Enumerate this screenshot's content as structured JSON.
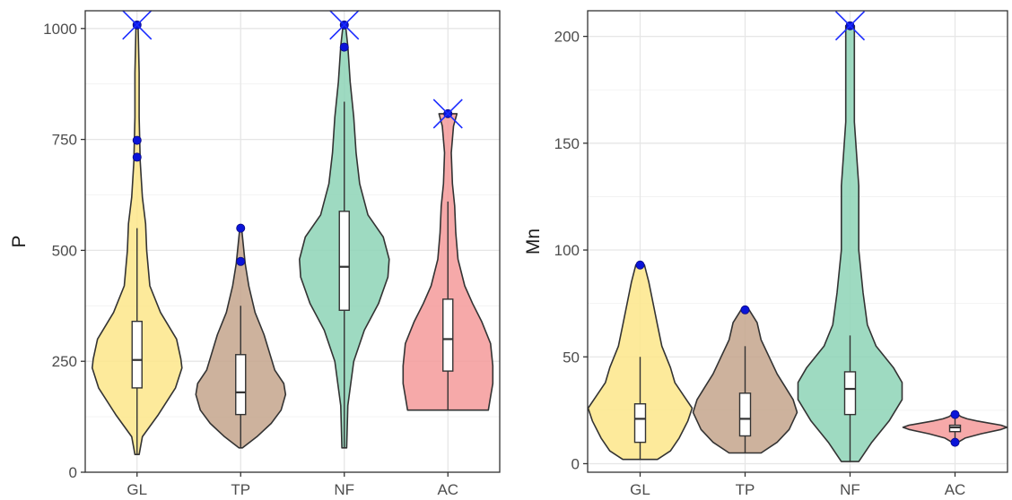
{
  "chart_data": [
    {
      "type": "violin",
      "xlabel": "",
      "ylabel": "P",
      "categories": [
        "GL",
        "TP",
        "NF",
        "AC"
      ],
      "colors": [
        "#fde68a",
        "#c4a48c",
        "#8dd3b6",
        "#f59a9a"
      ],
      "ylim": [
        0,
        1040
      ],
      "yticks": [
        0,
        250,
        500,
        750,
        1000
      ],
      "grid": true,
      "series": [
        {
          "category": "GL",
          "min": 40,
          "q1": 190,
          "median": 253,
          "q3": 340,
          "max": 550,
          "outliers": [
            710,
            748,
            1008
          ],
          "extreme": 1008,
          "density": [
            [
              40,
              2
            ],
            [
              80,
              5
            ],
            [
              130,
              20
            ],
            [
              190,
              36
            ],
            [
              235,
              42
            ],
            [
              255,
              41
            ],
            [
              300,
              37
            ],
            [
              360,
              22
            ],
            [
              420,
              12
            ],
            [
              500,
              9
            ],
            [
              560,
              8
            ],
            [
              620,
              5
            ],
            [
              700,
              3
            ],
            [
              800,
              2
            ],
            [
              900,
              2
            ],
            [
              1008,
              1
            ]
          ]
        },
        {
          "category": "TP",
          "min": 55,
          "q1": 130,
          "median": 180,
          "q3": 265,
          "max": 375,
          "outliers": [
            475,
            550
          ],
          "density": [
            [
              55,
              2
            ],
            [
              80,
              18
            ],
            [
              110,
              34
            ],
            [
              140,
              45
            ],
            [
              175,
              50
            ],
            [
              200,
              48
            ],
            [
              230,
              38
            ],
            [
              270,
              32
            ],
            [
              310,
              26
            ],
            [
              360,
              16
            ],
            [
              420,
              9
            ],
            [
              470,
              5
            ],
            [
              510,
              3
            ],
            [
              550,
              1
            ]
          ]
        },
        {
          "category": "NF",
          "min": 55,
          "q1": 365,
          "median": 463,
          "q3": 588,
          "max": 835,
          "outliers": [
            958,
            1008
          ],
          "extreme": 1008,
          "density": [
            [
              55,
              2
            ],
            [
              150,
              3
            ],
            [
              250,
              8
            ],
            [
              320,
              17
            ],
            [
              380,
              29
            ],
            [
              440,
              37
            ],
            [
              480,
              38
            ],
            [
              530,
              33
            ],
            [
              580,
              20
            ],
            [
              650,
              13
            ],
            [
              720,
              10
            ],
            [
              800,
              8
            ],
            [
              880,
              5
            ],
            [
              960,
              3
            ],
            [
              1008,
              1
            ]
          ]
        },
        {
          "category": "AC",
          "min": 140,
          "q1": 228,
          "median": 300,
          "q3": 390,
          "max": 610,
          "outliers": [
            808
          ],
          "extreme": 808,
          "density": [
            [
              140,
              36
            ],
            [
              170,
              38
            ],
            [
              200,
              40
            ],
            [
              240,
              40
            ],
            [
              290,
              38
            ],
            [
              340,
              30
            ],
            [
              380,
              22
            ],
            [
              420,
              15
            ],
            [
              480,
              9
            ],
            [
              540,
              7
            ],
            [
              600,
              6
            ],
            [
              650,
              4
            ],
            [
              720,
              3
            ],
            [
              780,
              5
            ],
            [
              808,
              8
            ]
          ]
        }
      ]
    },
    {
      "type": "violin",
      "xlabel": "",
      "ylabel": "Mn",
      "categories": [
        "GL",
        "TP",
        "NF",
        "AC"
      ],
      "colors": [
        "#fde68a",
        "#c4a48c",
        "#8dd3b6",
        "#f59a9a"
      ],
      "ylim": [
        -4,
        212
      ],
      "yticks": [
        0,
        50,
        100,
        150,
        200
      ],
      "grid": true,
      "series": [
        {
          "category": "GL",
          "min": 2,
          "q1": 10,
          "median": 21,
          "q3": 28,
          "max": 50,
          "outliers": [
            93
          ],
          "density": [
            [
              2,
              4
            ],
            [
              6,
              7
            ],
            [
              12,
              9
            ],
            [
              20,
              11
            ],
            [
              26,
              12
            ],
            [
              32,
              10
            ],
            [
              38,
              8
            ],
            [
              45,
              7
            ],
            [
              55,
              5
            ],
            [
              65,
              4
            ],
            [
              75,
              3
            ],
            [
              85,
              2
            ],
            [
              93,
              1
            ]
          ]
        },
        {
          "category": "TP",
          "min": 5,
          "q1": 13,
          "median": 21,
          "q3": 33,
          "max": 55,
          "outliers": [
            72
          ],
          "density": [
            [
              5,
              4
            ],
            [
              10,
              8
            ],
            [
              16,
              11
            ],
            [
              24,
              13
            ],
            [
              30,
              12
            ],
            [
              36,
              10
            ],
            [
              42,
              8
            ],
            [
              50,
              6
            ],
            [
              58,
              4
            ],
            [
              66,
              3
            ],
            [
              72,
              1
            ]
          ]
        },
        {
          "category": "NF",
          "min": 1,
          "q1": 23,
          "median": 35,
          "q3": 43,
          "max": 60,
          "outliers": [
            205
          ],
          "extreme": 205,
          "density": [
            [
              1,
              2
            ],
            [
              10,
              5
            ],
            [
              20,
              9
            ],
            [
              30,
              12
            ],
            [
              38,
              12
            ],
            [
              45,
              10
            ],
            [
              55,
              6
            ],
            [
              65,
              4
            ],
            [
              80,
              3
            ],
            [
              100,
              2
            ],
            [
              130,
              2
            ],
            [
              160,
              1
            ],
            [
              190,
              1
            ],
            [
              205,
              1
            ]
          ]
        },
        {
          "category": "AC",
          "min": 10,
          "q1": 15,
          "median": 17,
          "q3": 18,
          "max": 22,
          "outliers": [
            10,
            23
          ],
          "density": [
            [
              10,
              3
            ],
            [
              12,
              10
            ],
            [
              14,
              26
            ],
            [
              16,
              46
            ],
            [
              17,
              52
            ],
            [
              18,
              46
            ],
            [
              19,
              34
            ],
            [
              20,
              22
            ],
            [
              21,
              12
            ],
            [
              22,
              6
            ],
            [
              23,
              3
            ]
          ]
        }
      ]
    }
  ]
}
